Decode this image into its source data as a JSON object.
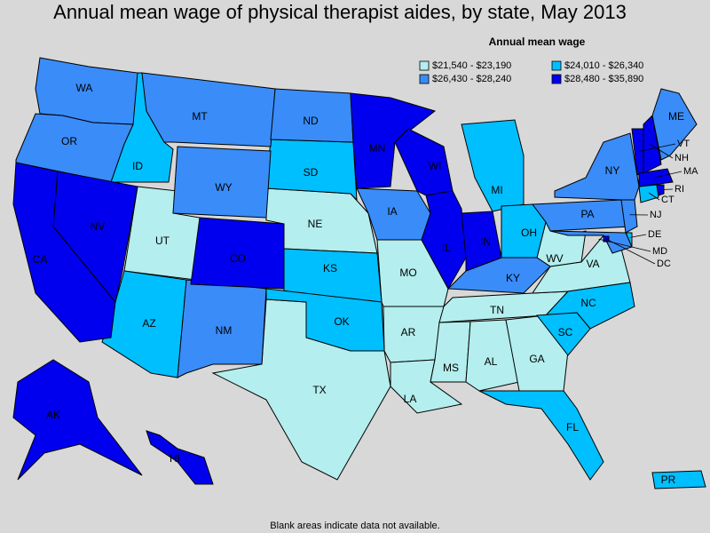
{
  "title": "Annual mean wage of physical therapist aides, by state, May 2013",
  "legend": {
    "title": "Annual mean wage",
    "entries": [
      {
        "label": "$21,540 - $23,190",
        "color": "#b4eeee",
        "states": [
          "UT",
          "NE",
          "MO",
          "AR",
          "TX",
          "LA",
          "MS",
          "AL",
          "GA",
          "TN",
          "WV",
          "VA"
        ]
      },
      {
        "label": "$24,010 - $26,340",
        "color": "#00bfff",
        "states": [
          "ID",
          "SD",
          "KS",
          "OK",
          "AZ",
          "MI",
          "OH",
          "NC",
          "SC",
          "FL",
          "PR",
          "DE",
          "CT"
        ]
      },
      {
        "label": "$26,430 - $28,240",
        "color": "#3a8cf8",
        "states": [
          "WA",
          "OR",
          "MT",
          "ND",
          "WY",
          "IA",
          "NM",
          "KY",
          "PA",
          "NY",
          "ME",
          "NJ",
          "MD"
        ]
      },
      {
        "label": "$28,480 - $35,890",
        "color": "#0000ee",
        "states": [
          "CA",
          "NV",
          "CO",
          "MN",
          "WI",
          "IL",
          "IN",
          "AK",
          "HI",
          "VT",
          "NH",
          "MA",
          "RI",
          "DC"
        ]
      }
    ]
  },
  "note": "Blank areas indicate data not available."
}
